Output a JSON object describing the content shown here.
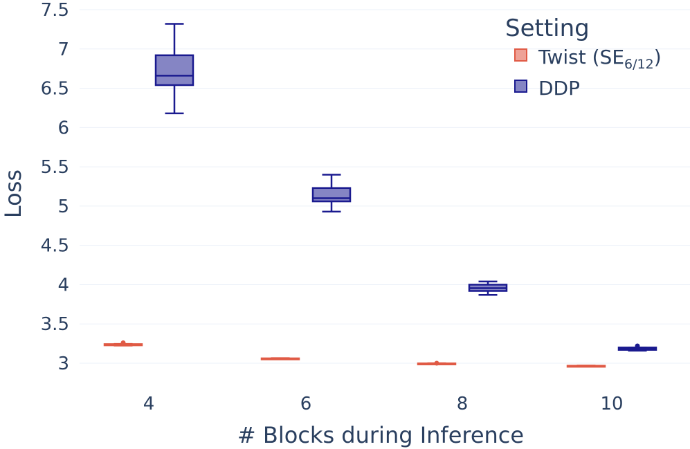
{
  "chart_data": {
    "type": "box",
    "xlabel": "# Blocks during Inference",
    "ylabel": "Loss",
    "categories": [
      "4",
      "6",
      "8",
      "10"
    ],
    "ylim": [
      2.75,
      7.5
    ],
    "y_ticks": [
      "3",
      "3.5",
      "4",
      "4.5",
      "5",
      "5.5",
      "6",
      "6.5",
      "7",
      "7.5"
    ],
    "grid": true,
    "legend": {
      "title": "Setting",
      "placement": "top-right",
      "items": [
        {
          "label_main": "Twist (SE",
          "label_sub": "6/12",
          "label_end": ")",
          "color": "#e05a45",
          "fill": "#eea297"
        },
        {
          "label_main": "DDP",
          "label_sub": "",
          "label_end": "",
          "color": "#1a1a8f",
          "fill": "#8585c4"
        }
      ]
    },
    "series": [
      {
        "name": "Twist (SE6/12)",
        "color": "#e05a45",
        "fill": "#eea297",
        "boxes": [
          {
            "category": "4",
            "min": 3.225,
            "q1": 3.228,
            "median": 3.235,
            "q3": 3.243,
            "max": 3.245,
            "outliers": [
              3.26
            ]
          },
          {
            "category": "6",
            "min": 3.052,
            "q1": 3.055,
            "median": 3.058,
            "q3": 3.062,
            "max": 3.065,
            "outliers": []
          },
          {
            "category": "8",
            "min": 2.99,
            "q1": 2.992,
            "median": 2.995,
            "q3": 2.998,
            "max": 3.0,
            "outliers": [
              3.0
            ]
          },
          {
            "category": "10",
            "min": 2.962,
            "q1": 2.964,
            "median": 2.966,
            "q3": 2.968,
            "max": 2.97,
            "outliers": []
          }
        ]
      },
      {
        "name": "DDP",
        "color": "#1a1a8f",
        "fill": "#8585c4",
        "boxes": [
          {
            "category": "4",
            "min": 6.18,
            "q1": 6.54,
            "median": 6.66,
            "q3": 6.92,
            "max": 7.32,
            "outliers": []
          },
          {
            "category": "6",
            "min": 4.93,
            "q1": 5.06,
            "median": 5.1,
            "q3": 5.23,
            "max": 5.4,
            "outliers": []
          },
          {
            "category": "8",
            "min": 3.87,
            "q1": 3.92,
            "median": 3.955,
            "q3": 4.0,
            "max": 4.04,
            "outliers": []
          },
          {
            "category": "10",
            "min": 3.16,
            "q1": 3.17,
            "median": 3.18,
            "q3": 3.2,
            "max": 3.2,
            "outliers": [
              3.22
            ]
          }
        ]
      }
    ]
  }
}
